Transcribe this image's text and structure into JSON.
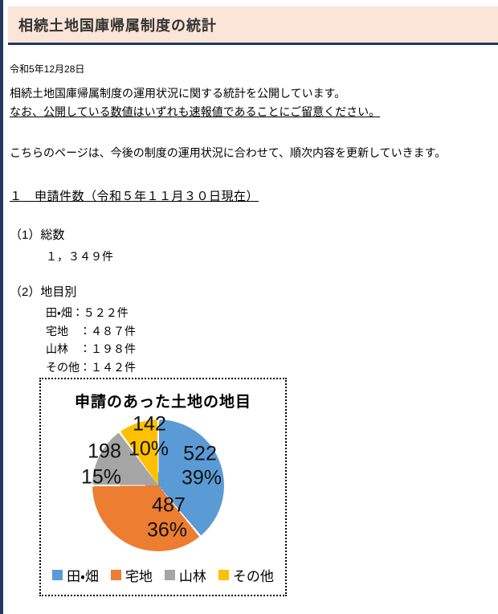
{
  "page": {
    "header": {
      "title": "相続土地国庫帰属制度の統計"
    },
    "date": "令和5年12月28日",
    "intro": {
      "line1": "相続土地国庫帰属制度の運用状況に関する統計を公開しています。",
      "line2": "なお、公開している数値はいずれも速報値であることにご留意ください。"
    },
    "update_note": "こちらのページは、今後の制度の運用状況に合わせて、順次内容を更新していきます。",
    "section1": {
      "heading": "１　申請件数（令和５年１１月３０日現在）",
      "total_label": "（1）総数",
      "total_value": "１，３４９件",
      "by_category_label": "（2）地目別",
      "items": [
        "田・畑：５２２件",
        "宅地　：４８７件",
        "山林　：１９８件",
        "その他：１４２件"
      ]
    },
    "colors": {
      "header_background": "#fbe5d6",
      "header_border": "#1f3864",
      "left_stripe": "#24395e"
    }
  },
  "chart_data": {
    "type": "pie",
    "title": "申請のあった土地の地目",
    "categories": [
      "田・畑",
      "宅地",
      "山林",
      "その他"
    ],
    "values": [
      522,
      487,
      198,
      142
    ],
    "percents": [
      39,
      36,
      15,
      10
    ],
    "value_labels": [
      "522",
      "487",
      "198",
      "142"
    ],
    "percent_labels": [
      "39%",
      "36%",
      "15%",
      "10%"
    ],
    "colors": [
      "#5B9BD5",
      "#ED7D31",
      "#A5A5A5",
      "#FFC000"
    ],
    "legend_position": "bottom",
    "slice_border_color": "#ffffff",
    "start_angle_deg": 0,
    "direction": "clockwise"
  }
}
